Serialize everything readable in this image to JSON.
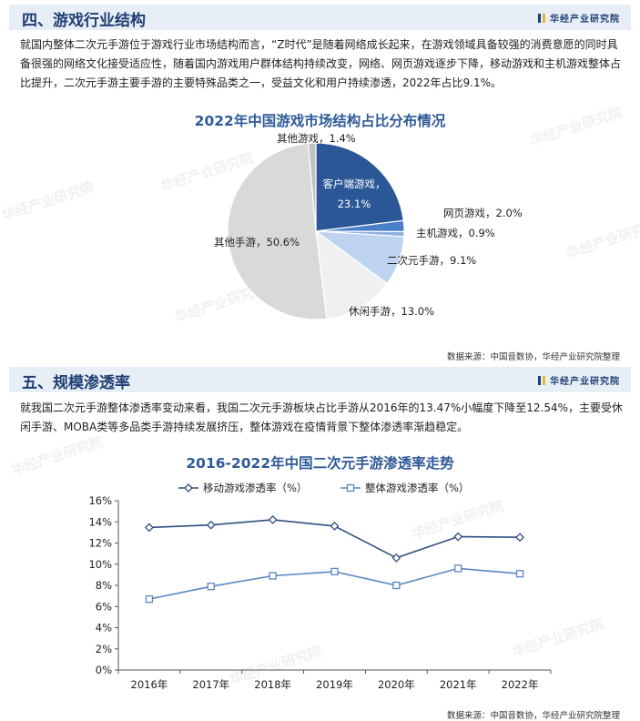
{
  "brand": "华经产业研究院",
  "section4": {
    "title": "四、游戏行业结构",
    "paragraph": "就国内整体二次元手游位于游戏行业市场结构而言，“Z时代”是随着网络成长起来，在游戏领域具备较强的消费意愿的同时具备很强的网络文化接受适应性，随着国内游戏用户群体结构持续改变，网络、网页游戏逐步下降，移动游戏和主机游戏整体占比提升，二次元手游主要手游的主要特殊品类之一，受益文化和用户持续渗透，2022年占比9.1%。",
    "source": "数据来源：中国音数协，华经产业研究院整理"
  },
  "section5": {
    "title": "五、规模渗透率",
    "paragraph": "就我国二次元手游整体渗透率变动来看，我国二次元手游板块占比手游从2016年的13.47%小幅度下降至12.54%，主要受休闲手游、MOBA类等多品类手游持续发展挤压，整体游戏在疫情背景下整体渗透率渐趋稳定。",
    "source": "数据来源：中国音数协，华经产业研究院整理"
  },
  "chart_data": [
    {
      "type": "pie",
      "title": "2022年中国游戏市场结构占比分布情况",
      "slices": [
        {
          "label": "客户端游戏",
          "value": 23.1,
          "value_label": "23.1%",
          "color": "#2b5797"
        },
        {
          "label": "网页游戏",
          "value": 2.0,
          "value_label": "2.0%",
          "color": "#4a7fc9"
        },
        {
          "label": "主机游戏",
          "value": 0.9,
          "value_label": "0.9%",
          "color": "#8fb0dd"
        },
        {
          "label": "二次元手游",
          "value": 9.1,
          "value_label": "9.1%",
          "color": "#bdd3ef"
        },
        {
          "label": "休闲手游",
          "value": 13.0,
          "value_label": "13.0%",
          "color": "#f0f0f0"
        },
        {
          "label": "其他手游",
          "value": 50.6,
          "value_label": "50.6%",
          "color": "#d9d9d9"
        },
        {
          "label": "其他游戏",
          "value": 1.4,
          "value_label": "1.4%",
          "color": "#c2c2c2"
        }
      ]
    },
    {
      "type": "line",
      "title": "2016-2022年中国二次元手游渗透率走势",
      "categories": [
        "2016年",
        "2017年",
        "2018年",
        "2019年",
        "2020年",
        "2021年",
        "2022年"
      ],
      "series": [
        {
          "name": "移动游戏渗透率（%）",
          "values": [
            13.47,
            13.7,
            14.2,
            13.6,
            10.6,
            12.6,
            12.54
          ],
          "color": "#2f4f7f",
          "marker": "diamond"
        },
        {
          "name": "整体游戏渗透率（%）",
          "values": [
            6.7,
            7.9,
            8.9,
            9.3,
            8.0,
            9.6,
            9.1
          ],
          "color": "#5b86c2",
          "marker": "square"
        }
      ],
      "ylim": [
        0,
        16
      ],
      "yticks": [
        "0%",
        "2%",
        "4%",
        "6%",
        "8%",
        "10%",
        "12%",
        "14%",
        "16%"
      ],
      "legend": "top",
      "grid": false
    }
  ]
}
